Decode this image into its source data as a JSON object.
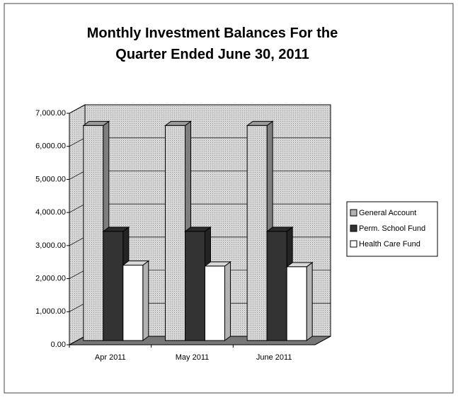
{
  "chart_data": {
    "type": "bar3d",
    "title": "Monthly Investment Balances For the Quarter Ended June 30, 2011",
    "categories": [
      "Apr 2011",
      "May 2011",
      "June 2011"
    ],
    "series": [
      {
        "name": "General Account",
        "color": "#b4b4b4",
        "values": [
          6500,
          6500,
          6500
        ]
      },
      {
        "name": "Perm. School Fund",
        "color": "#333333",
        "values": [
          3300,
          3300,
          3300
        ]
      },
      {
        "name": "Health Care Fund",
        "color": "#ffffff",
        "values": [
          2280,
          2250,
          2230
        ]
      }
    ],
    "ylim": [
      0,
      7000
    ],
    "yticks": [
      {
        "value": 0,
        "label": "0.00"
      },
      {
        "value": 1000,
        "label": "1,000.00"
      },
      {
        "value": 2000,
        "label": "2,000.00"
      },
      {
        "value": 3000,
        "label": "3,000.00"
      },
      {
        "value": 4000,
        "label": "4,000.00"
      },
      {
        "value": 5000,
        "label": "5,000.00"
      },
      {
        "value": 6000,
        "label": "6,000.00"
      },
      {
        "value": 7000,
        "label": "7,000.00"
      }
    ],
    "grid": true,
    "legend": "right"
  }
}
